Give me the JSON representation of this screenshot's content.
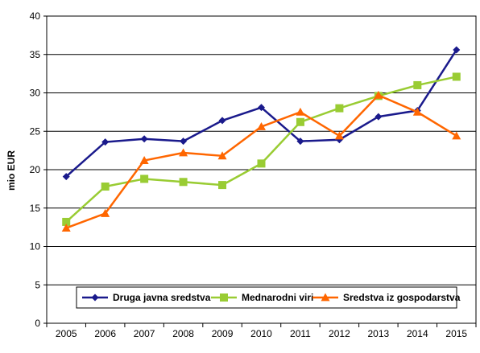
{
  "chart_data": {
    "type": "line",
    "title": "",
    "xlabel": "",
    "ylabel": "mio EUR",
    "ylim": [
      0,
      40
    ],
    "yticks": [
      0,
      5,
      10,
      15,
      20,
      25,
      30,
      35,
      40
    ],
    "categories": [
      "2005",
      "2006",
      "2007",
      "2008",
      "2009",
      "2010",
      "2011",
      "2012",
      "2013",
      "2014",
      "2015"
    ],
    "grid": true,
    "legend_position": "bottom-inside",
    "series": [
      {
        "name": "Druga javna sredstva",
        "color": "#1a1a8c",
        "marker": "diamond",
        "values": [
          19.1,
          23.6,
          24.0,
          23.7,
          26.4,
          28.1,
          23.7,
          23.9,
          26.9,
          27.7,
          35.6
        ]
      },
      {
        "name": "Mednarodni viri",
        "color": "#99cc33",
        "marker": "square",
        "values": [
          13.2,
          17.8,
          18.8,
          18.4,
          18.0,
          20.8,
          26.2,
          28.0,
          29.6,
          31.0,
          32.1
        ]
      },
      {
        "name": "Sredstva iz gospodarstva",
        "color": "#ff6600",
        "marker": "triangle",
        "values": [
          12.4,
          14.3,
          21.2,
          22.2,
          21.8,
          25.6,
          27.5,
          24.4,
          29.7,
          27.5,
          24.4
        ]
      }
    ]
  }
}
